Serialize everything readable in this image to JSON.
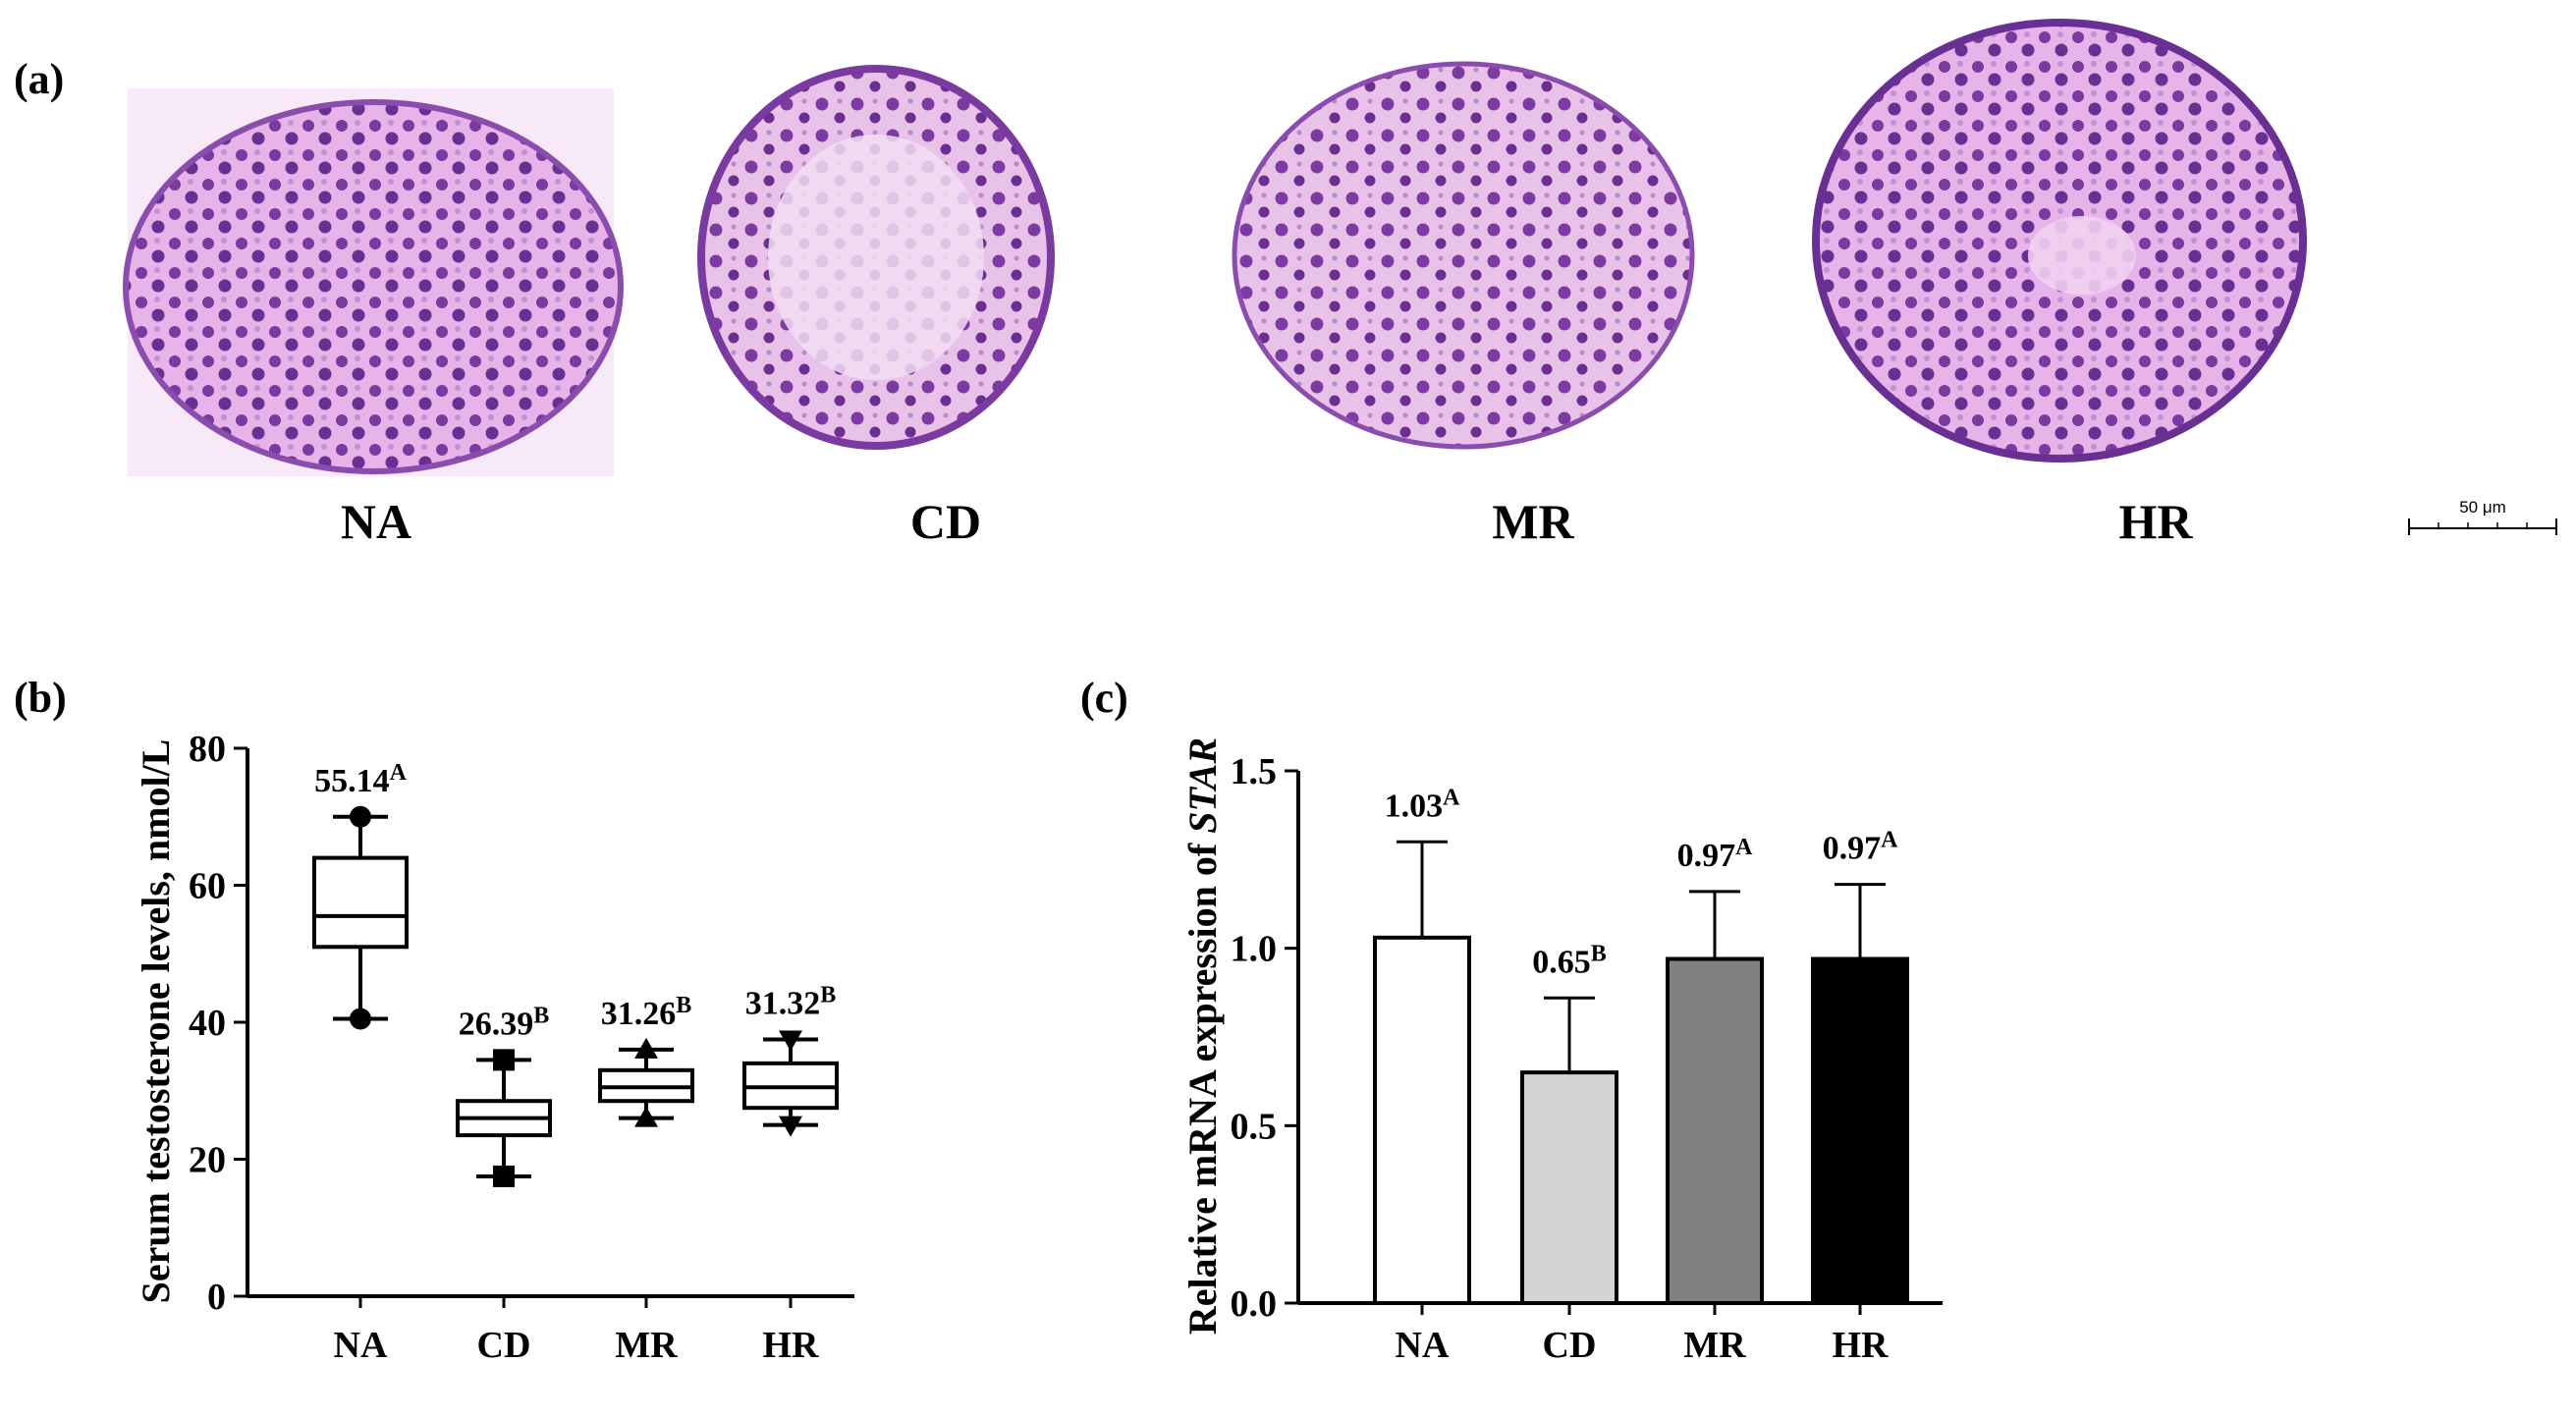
{
  "panel_a": {
    "label": "(a)",
    "images": [
      {
        "label": "NA",
        "description": "H&E stained seminiferous tubule"
      },
      {
        "label": "CD",
        "description": "H&E stained seminiferous tubule"
      },
      {
        "label": "MR",
        "description": "H&E stained seminiferous tubule"
      },
      {
        "label": "HR",
        "description": "H&E stained seminiferous tubule"
      }
    ],
    "scale_bar": "50 μm",
    "colors": {
      "tissue": "#e2a8e4",
      "nuclei": "#6a2f93",
      "background": "#ffffff"
    }
  },
  "chart_data": [
    {
      "panel": "(b)",
      "type": "box",
      "ylabel": "Serum testosterone levels, nmol/L",
      "xlabel": "",
      "ylim": [
        0,
        80
      ],
      "yticks": [
        0,
        20,
        40,
        60,
        80
      ],
      "categories": [
        "NA",
        "CD",
        "MR",
        "HR"
      ],
      "boxes": [
        {
          "name": "NA",
          "min": 40.5,
          "q1": 51,
          "median": 55.5,
          "q3": 64,
          "max": 70
        },
        {
          "name": "CD",
          "min": 17.5,
          "q1": 23.5,
          "median": 26,
          "q3": 28.5,
          "max": 34.5
        },
        {
          "name": "MR",
          "min": 26,
          "q1": 28.5,
          "median": 30.5,
          "q3": 33,
          "max": 36
        },
        {
          "name": "HR",
          "min": 25,
          "q1": 27.5,
          "median": 30.5,
          "q3": 34,
          "max": 37.5
        }
      ],
      "whisker_markers": [
        "circle",
        "square",
        "triangle",
        "inverted-triangle"
      ],
      "annotations": [
        {
          "value": "55.14",
          "sup": "A"
        },
        {
          "value": "26.39",
          "sup": "B"
        },
        {
          "value": "31.26",
          "sup": "B"
        },
        {
          "value": "31.32",
          "sup": "B"
        }
      ]
    },
    {
      "panel": "(c)",
      "type": "bar",
      "ylabel_prefix": "Relative mRNA expression of ",
      "ylabel_gene": "STAR",
      "xlabel": "",
      "ylim": [
        0,
        1.5
      ],
      "yticks": [
        "0.0",
        "0.5",
        "1.0",
        "1.5"
      ],
      "categories": [
        "NA",
        "CD",
        "MR",
        "HR"
      ],
      "values": [
        1.03,
        0.65,
        0.97,
        0.97
      ],
      "errors": [
        0.27,
        0.21,
        0.19,
        0.21
      ],
      "bar_colors": [
        "#ffffff",
        "#d4d4d4",
        "#808080",
        "#000000"
      ],
      "annotations": [
        {
          "value": "1.03",
          "sup": "A"
        },
        {
          "value": "0.65",
          "sup": "B"
        },
        {
          "value": "0.97",
          "sup": "A"
        },
        {
          "value": "0.97",
          "sup": "A"
        }
      ]
    }
  ]
}
